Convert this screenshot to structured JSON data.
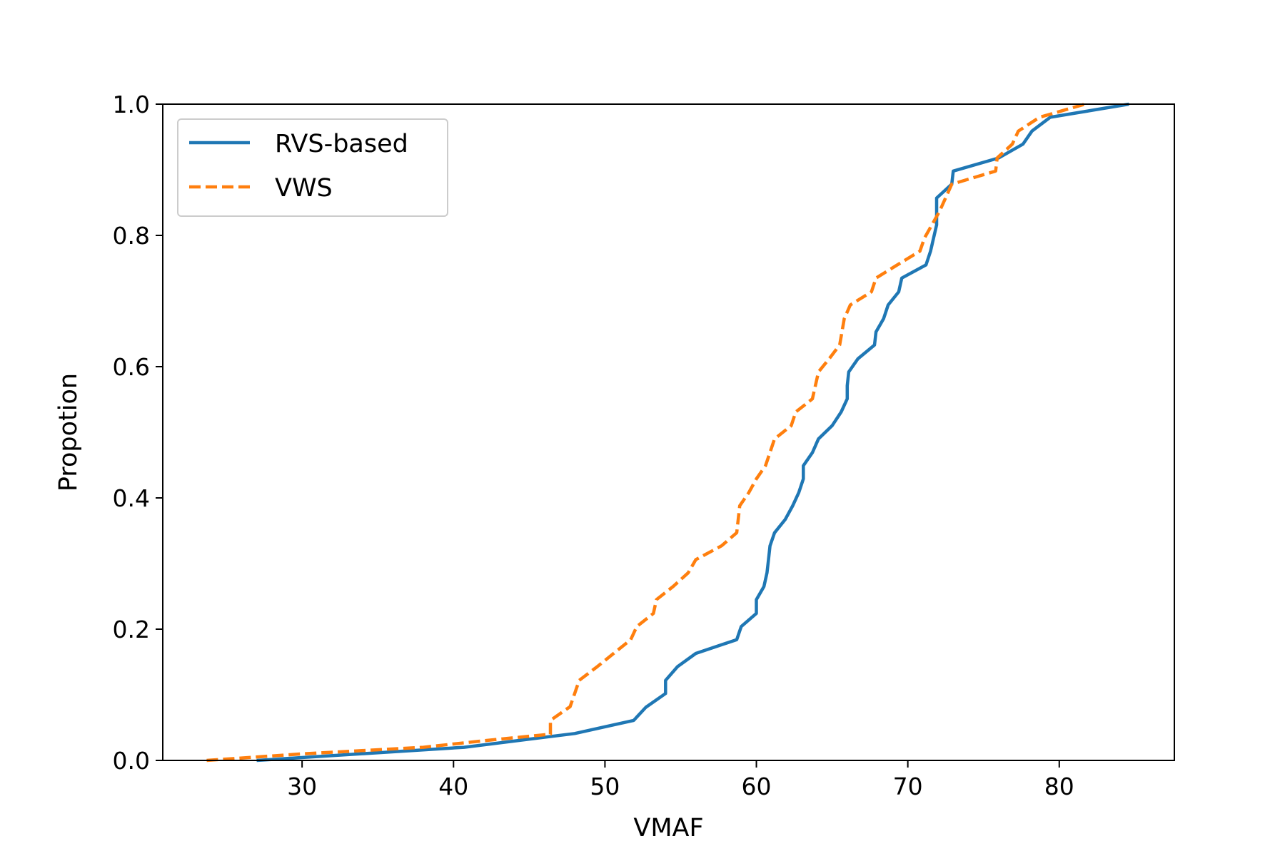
{
  "chart_data": {
    "type": "line",
    "title": "",
    "xlabel": "VMAF",
    "ylabel": "Propotion",
    "xlim": [
      20.8,
      87.6
    ],
    "ylim": [
      0.0,
      1.0
    ],
    "xticks": [
      30,
      40,
      50,
      60,
      70,
      80
    ],
    "yticks": [
      0.0,
      0.2,
      0.4,
      0.6,
      0.8,
      1.0
    ],
    "xtick_labels": [
      "30",
      "40",
      "50",
      "60",
      "70",
      "80"
    ],
    "ytick_labels": [
      "0.0",
      "0.2",
      "0.4",
      "0.6",
      "0.8",
      "1.0"
    ],
    "grid": false,
    "legend_position": "upper-left",
    "series": [
      {
        "name": "RVS-based",
        "color": "#1f77b4",
        "style": "solid",
        "points": [
          [
            27.0,
            0.0
          ],
          [
            40.7,
            0.02
          ],
          [
            48.0,
            0.041
          ],
          [
            51.9,
            0.061
          ],
          [
            52.7,
            0.081
          ],
          [
            54.0,
            0.102
          ],
          [
            54.0,
            0.122
          ],
          [
            54.8,
            0.143
          ],
          [
            56.0,
            0.163
          ],
          [
            58.7,
            0.184
          ],
          [
            59.0,
            0.204
          ],
          [
            60.0,
            0.224
          ],
          [
            60.0,
            0.245
          ],
          [
            60.5,
            0.265
          ],
          [
            60.7,
            0.286
          ],
          [
            60.8,
            0.306
          ],
          [
            60.9,
            0.327
          ],
          [
            61.2,
            0.347
          ],
          [
            61.9,
            0.367
          ],
          [
            62.4,
            0.388
          ],
          [
            62.8,
            0.408
          ],
          [
            63.1,
            0.429
          ],
          [
            63.1,
            0.449
          ],
          [
            63.7,
            0.469
          ],
          [
            64.1,
            0.49
          ],
          [
            65.0,
            0.51
          ],
          [
            65.6,
            0.531
          ],
          [
            66.0,
            0.551
          ],
          [
            66.0,
            0.571
          ],
          [
            66.1,
            0.592
          ],
          [
            66.7,
            0.612
          ],
          [
            67.8,
            0.633
          ],
          [
            67.9,
            0.653
          ],
          [
            68.4,
            0.673
          ],
          [
            68.7,
            0.694
          ],
          [
            69.4,
            0.714
          ],
          [
            69.6,
            0.735
          ],
          [
            71.2,
            0.755
          ],
          [
            71.5,
            0.776
          ],
          [
            71.7,
            0.796
          ],
          [
            71.9,
            0.816
          ],
          [
            71.9,
            0.837
          ],
          [
            71.9,
            0.857
          ],
          [
            72.9,
            0.878
          ],
          [
            73.0,
            0.898
          ],
          [
            76.0,
            0.918
          ],
          [
            77.6,
            0.939
          ],
          [
            78.2,
            0.959
          ],
          [
            79.4,
            0.98
          ],
          [
            84.6,
            1.0
          ]
        ]
      },
      {
        "name": "VWS",
        "color": "#ff7f0e",
        "style": "dashed",
        "points": [
          [
            23.7,
            0.0
          ],
          [
            30.0,
            0.01
          ],
          [
            38.0,
            0.02
          ],
          [
            42.0,
            0.03
          ],
          [
            46.4,
            0.04
          ],
          [
            46.4,
            0.061
          ],
          [
            47.7,
            0.082
          ],
          [
            48.0,
            0.102
          ],
          [
            48.3,
            0.122
          ],
          [
            49.5,
            0.143
          ],
          [
            51.7,
            0.184
          ],
          [
            52.1,
            0.204
          ],
          [
            53.2,
            0.224
          ],
          [
            53.4,
            0.245
          ],
          [
            54.5,
            0.265
          ],
          [
            55.5,
            0.286
          ],
          [
            56.0,
            0.306
          ],
          [
            57.7,
            0.327
          ],
          [
            58.7,
            0.347
          ],
          [
            58.9,
            0.388
          ],
          [
            59.5,
            0.408
          ],
          [
            60.0,
            0.429
          ],
          [
            60.6,
            0.449
          ],
          [
            61.2,
            0.49
          ],
          [
            62.3,
            0.51
          ],
          [
            62.6,
            0.531
          ],
          [
            63.7,
            0.551
          ],
          [
            64.1,
            0.592
          ],
          [
            64.8,
            0.612
          ],
          [
            65.5,
            0.633
          ],
          [
            65.8,
            0.673
          ],
          [
            66.2,
            0.694
          ],
          [
            67.6,
            0.714
          ],
          [
            67.9,
            0.735
          ],
          [
            69.3,
            0.755
          ],
          [
            70.8,
            0.776
          ],
          [
            71.1,
            0.796
          ],
          [
            72.1,
            0.837
          ],
          [
            72.9,
            0.878
          ],
          [
            75.8,
            0.898
          ],
          [
            75.9,
            0.918
          ],
          [
            76.9,
            0.939
          ],
          [
            77.3,
            0.959
          ],
          [
            78.7,
            0.98
          ],
          [
            81.7,
            1.0
          ]
        ]
      }
    ]
  }
}
